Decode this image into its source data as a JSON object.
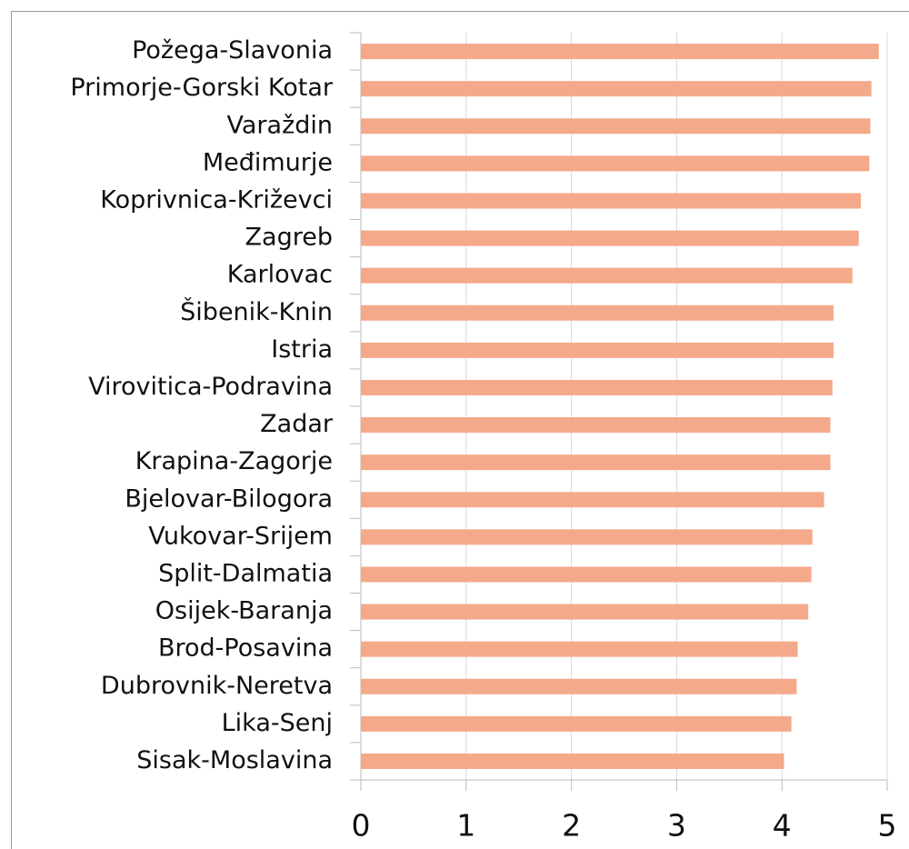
{
  "chart_data": {
    "type": "bar",
    "orientation": "horizontal",
    "categories": [
      "Požega-Slavonia",
      "Primorje-Gorski Kotar",
      "Varaždin",
      "Međimurje",
      "Koprivnica-Križevci",
      "Zagreb",
      "Karlovac",
      "Šibenik-Knin",
      "Istria",
      "Virovitica-Podravina",
      "Zadar",
      "Krapina-Zagorje",
      "Bjelovar-Bilogora",
      "Vukovar-Srijem",
      "Split-Dalmatia",
      "Osijek-Baranja",
      "Brod-Posavina",
      "Dubrovnik-Neretva",
      "Lika-Senj",
      "Sisak-Moslavina"
    ],
    "values": [
      4.92,
      4.85,
      4.84,
      4.83,
      4.75,
      4.73,
      4.67,
      4.49,
      4.49,
      4.48,
      4.46,
      4.46,
      4.4,
      4.29,
      4.28,
      4.25,
      4.15,
      4.14,
      4.09,
      4.02
    ],
    "color": "#f4a98a",
    "xlim": [
      0,
      5
    ],
    "xticks": [
      0,
      1,
      2,
      3,
      4,
      5
    ],
    "grid": true
  }
}
